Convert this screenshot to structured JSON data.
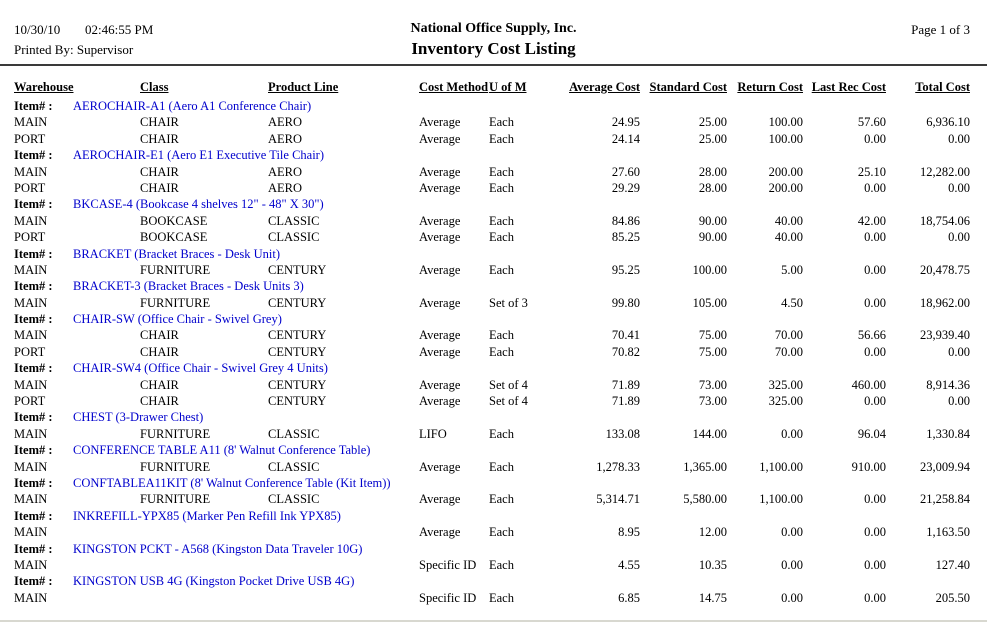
{
  "report": {
    "date": "10/30/10",
    "time": "02:46:55 PM",
    "printed_by": "Printed By: Supervisor",
    "company": "National Office Supply, Inc.",
    "title": "Inventory Cost Listing",
    "page": "Page 1 of 3"
  },
  "table": {
    "item_label": "Item# :",
    "columns": [
      "Warehouse",
      "Class",
      "Product Line",
      "Cost Method",
      "U of M",
      "Average Cost",
      "Standard Cost",
      "Return Cost",
      "Last Rec Cost",
      "Total Cost"
    ],
    "items": [
      {
        "code_desc": "AEROCHAIR-A1 (Aero A1 Conference Chair)",
        "rows": [
          [
            "MAIN",
            "CHAIR",
            "AERO",
            "Average",
            "Each",
            "24.95",
            "25.00",
            "100.00",
            "57.60",
            "6,936.10"
          ],
          [
            "PORT",
            "CHAIR",
            "AERO",
            "Average",
            "Each",
            "24.14",
            "25.00",
            "100.00",
            "0.00",
            "0.00"
          ]
        ]
      },
      {
        "code_desc": "AEROCHAIR-E1 (Aero E1 Executive Tile Chair)",
        "rows": [
          [
            "MAIN",
            "CHAIR",
            "AERO",
            "Average",
            "Each",
            "27.60",
            "28.00",
            "200.00",
            "25.10",
            "12,282.00"
          ],
          [
            "PORT",
            "CHAIR",
            "AERO",
            "Average",
            "Each",
            "29.29",
            "28.00",
            "200.00",
            "0.00",
            "0.00"
          ]
        ]
      },
      {
        "code_desc": "BKCASE-4 (Bookcase 4 shelves 12\" - 48\" X 30\")",
        "rows": [
          [
            "MAIN",
            "BOOKCASE",
            "CLASSIC",
            "Average",
            "Each",
            "84.86",
            "90.00",
            "40.00",
            "42.00",
            "18,754.06"
          ],
          [
            "PORT",
            "BOOKCASE",
            "CLASSIC",
            "Average",
            "Each",
            "85.25",
            "90.00",
            "40.00",
            "0.00",
            "0.00"
          ]
        ]
      },
      {
        "code_desc": "BRACKET (Bracket Braces - Desk Unit)",
        "rows": [
          [
            "MAIN",
            "FURNITURE",
            "CENTURY",
            "Average",
            "Each",
            "95.25",
            "100.00",
            "5.00",
            "0.00",
            "20,478.75"
          ]
        ]
      },
      {
        "code_desc": "BRACKET-3 (Bracket Braces - Desk Units 3)",
        "rows": [
          [
            "MAIN",
            "FURNITURE",
            "CENTURY",
            "Average",
            "Set of 3",
            "99.80",
            "105.00",
            "4.50",
            "0.00",
            "18,962.00"
          ]
        ]
      },
      {
        "code_desc": "CHAIR-SW (Office Chair - Swivel Grey)",
        "rows": [
          [
            "MAIN",
            "CHAIR",
            "CENTURY",
            "Average",
            "Each",
            "70.41",
            "75.00",
            "70.00",
            "56.66",
            "23,939.40"
          ],
          [
            "PORT",
            "CHAIR",
            "CENTURY",
            "Average",
            "Each",
            "70.82",
            "75.00",
            "70.00",
            "0.00",
            "0.00"
          ]
        ]
      },
      {
        "code_desc": "CHAIR-SW4 (Office Chair - Swivel Grey 4 Units)",
        "rows": [
          [
            "MAIN",
            "CHAIR",
            "CENTURY",
            "Average",
            "Set of 4",
            "71.89",
            "73.00",
            "325.00",
            "460.00",
            "8,914.36"
          ],
          [
            "PORT",
            "CHAIR",
            "CENTURY",
            "Average",
            "Set of 4",
            "71.89",
            "73.00",
            "325.00",
            "0.00",
            "0.00"
          ]
        ]
      },
      {
        "code_desc": "CHEST (3-Drawer Chest)",
        "rows": [
          [
            "MAIN",
            "FURNITURE",
            "CLASSIC",
            "LIFO",
            "Each",
            "133.08",
            "144.00",
            "0.00",
            "96.04",
            "1,330.84"
          ]
        ]
      },
      {
        "code_desc": "CONFERENCE TABLE A11 (8' Walnut Conference Table)",
        "rows": [
          [
            "MAIN",
            "FURNITURE",
            "CLASSIC",
            "Average",
            "Each",
            "1,278.33",
            "1,365.00",
            "1,100.00",
            "910.00",
            "23,009.94"
          ]
        ]
      },
      {
        "code_desc": "CONFTABLEA11KIT (8' Walnut Conference Table (Kit Item))",
        "rows": [
          [
            "MAIN",
            "FURNITURE",
            "CLASSIC",
            "Average",
            "Each",
            "5,314.71",
            "5,580.00",
            "1,100.00",
            "0.00",
            "21,258.84"
          ]
        ]
      },
      {
        "code_desc": "INKREFILL-YPX85 (Marker Pen Refill Ink YPX85)",
        "rows": [
          [
            "MAIN",
            "",
            "",
            "Average",
            "Each",
            "8.95",
            "12.00",
            "0.00",
            "0.00",
            "1,163.50"
          ]
        ]
      },
      {
        "code_desc": "KINGSTON PCKT - A568 (Kingston Data Traveler 10G)",
        "rows": [
          [
            "MAIN",
            "",
            "",
            "Specific ID",
            "Each",
            "4.55",
            "10.35",
            "0.00",
            "0.00",
            "127.40"
          ]
        ]
      },
      {
        "code_desc": "KINGSTON USB 4G (Kingston Pocket Drive USB 4G)",
        "rows": [
          [
            "MAIN",
            "",
            "",
            "Specific ID",
            "Each",
            "6.85",
            "14.75",
            "0.00",
            "0.00",
            "205.50"
          ]
        ]
      }
    ]
  }
}
